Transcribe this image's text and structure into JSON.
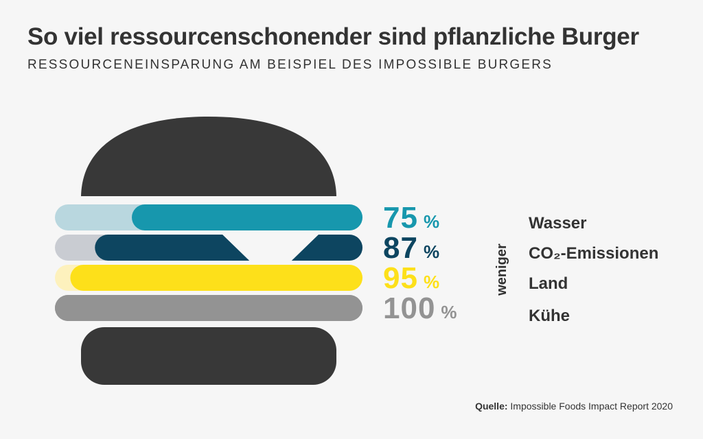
{
  "header": {
    "title": "So viel ressourcenschonender sind pflanzliche Burger",
    "subtitle": "RESSOURCENEINSPARUNG AM BEISPIEL DES IMPOSSIBLE BURGERS"
  },
  "side_label": "weniger",
  "source": {
    "label": "Quelle:",
    "text": "Impossible Foods Impact Report 2020"
  },
  "colors": {
    "bun": "#383838",
    "background": "#f6f6f6",
    "text": "#333333"
  },
  "chart_data": {
    "type": "bar",
    "orientation": "horizontal",
    "style": "burger-infographic",
    "title": "So viel ressourcenschonender sind pflanzliche Burger",
    "subtitle": "RESSOURCENEINSPARUNG AM BEISPIEL DES IMPOSSIBLE BURGERS",
    "unit": "%",
    "categories": [
      "Wasser",
      "CO₂-Emissionen",
      "Land",
      "Kühe"
    ],
    "values": [
      75,
      87,
      95,
      100
    ],
    "value_labels": [
      "75",
      "87",
      "95",
      "100"
    ],
    "bar_colors": [
      "#1797ad",
      "#0d4560",
      "#fde01a",
      "#939393"
    ],
    "track_colors": [
      "#b9d7df",
      "#c9ccd2",
      "#fdf1bd",
      "#939393"
    ],
    "xlim": [
      0,
      100
    ]
  }
}
